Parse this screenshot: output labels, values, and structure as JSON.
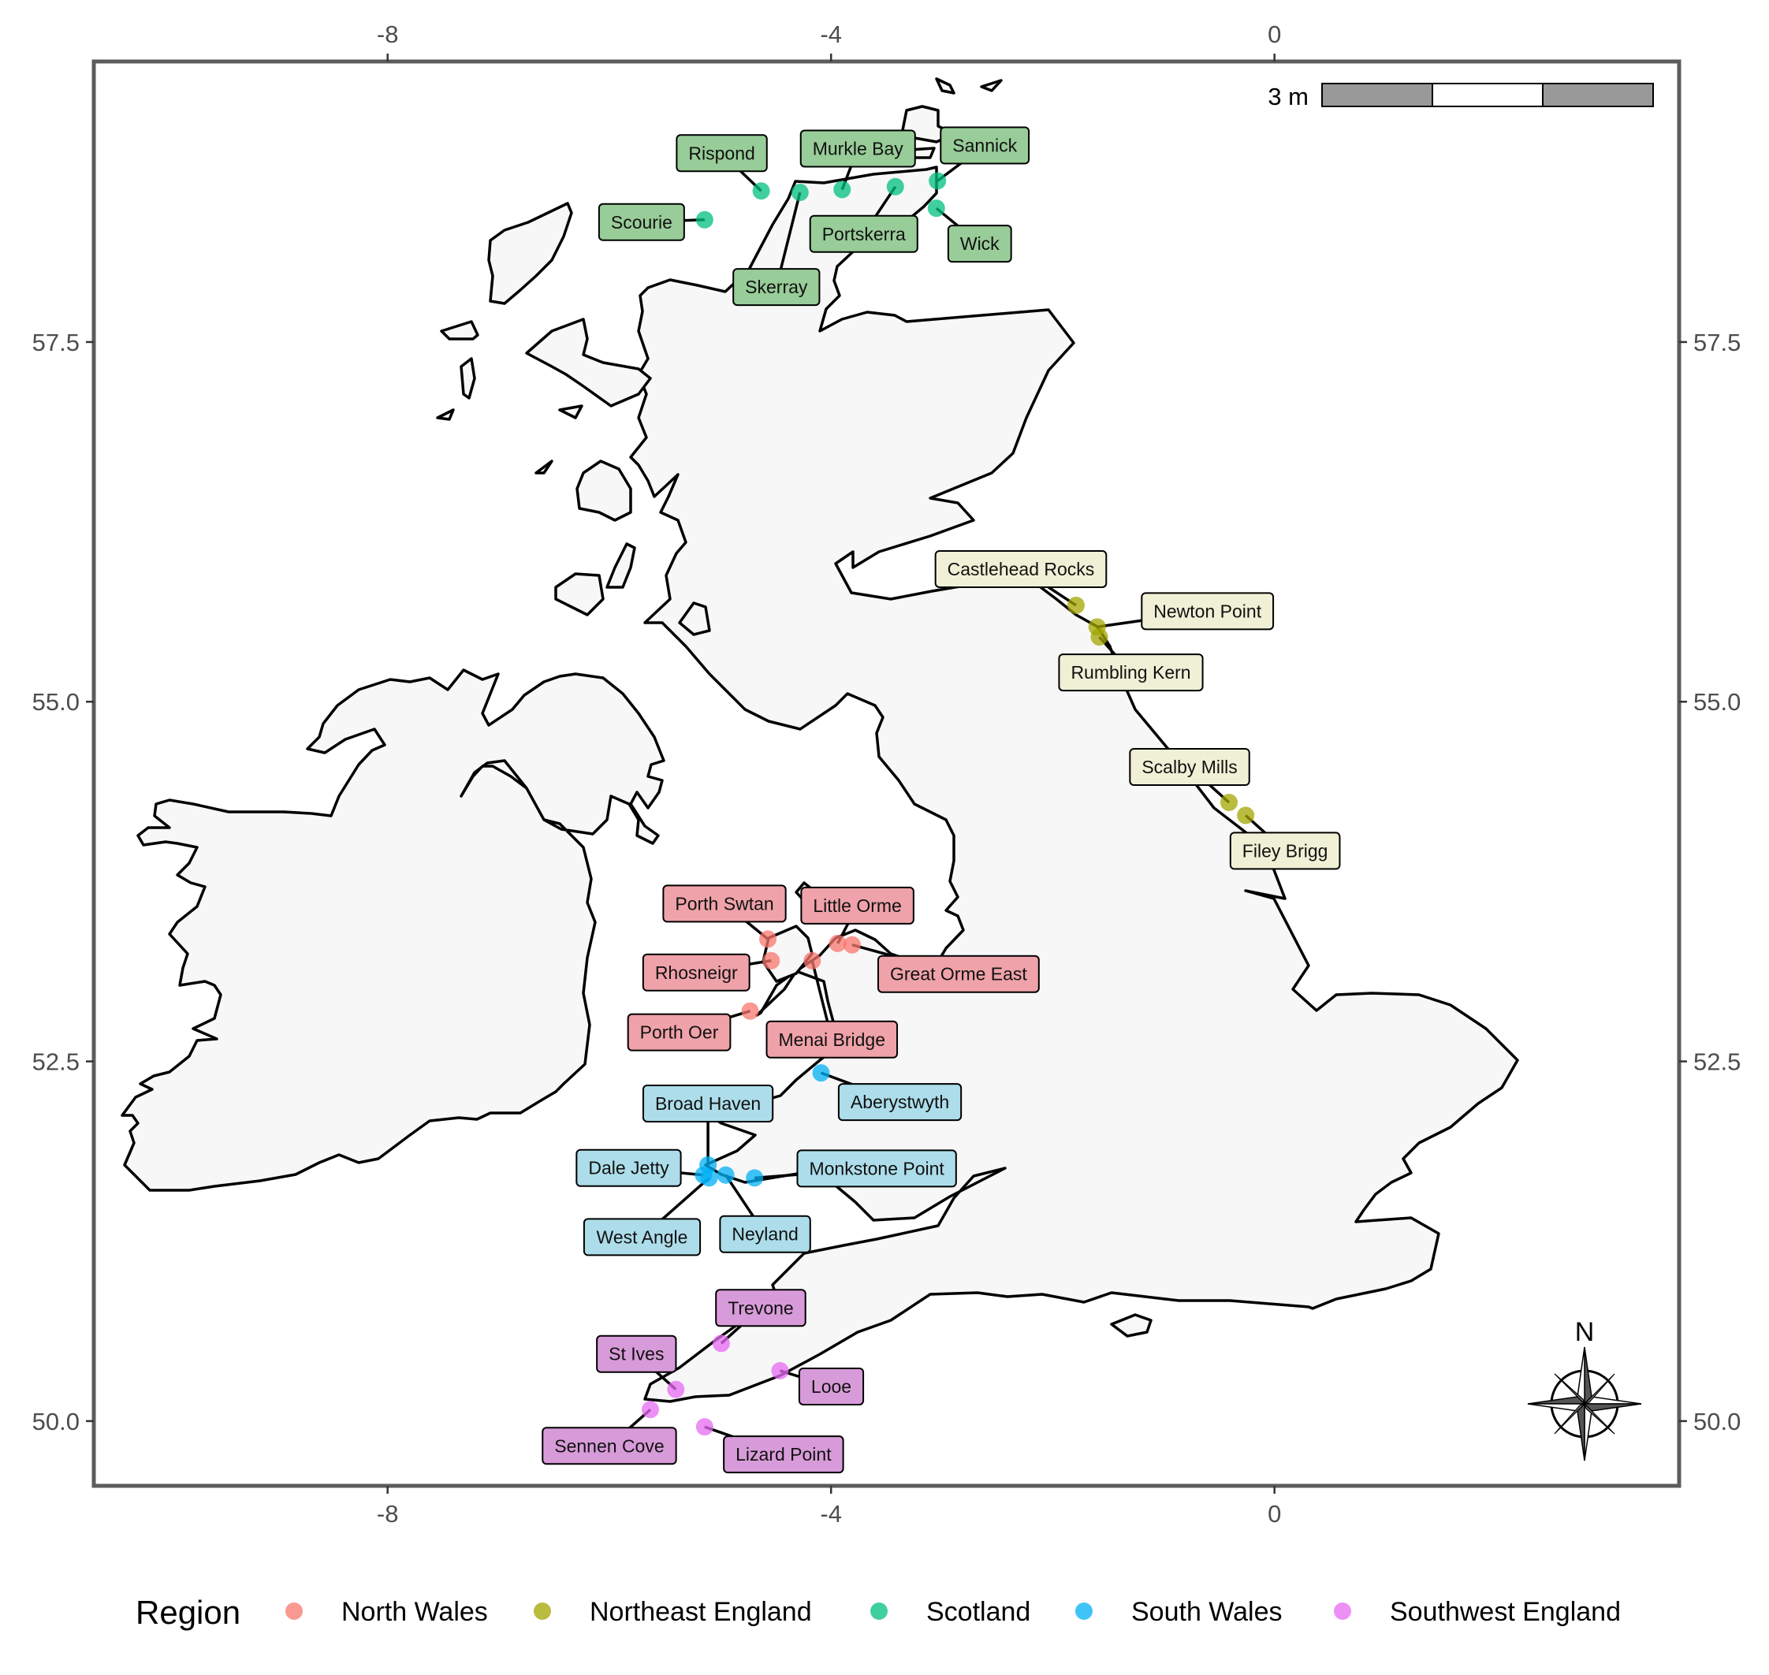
{
  "chart_data": {
    "type": "scatter",
    "x_ticks": [
      "-8",
      "-4",
      "0"
    ],
    "y_ticks": [
      "50.0",
      "52.5",
      "55.0",
      "57.5"
    ],
    "xlim": [
      -10.65,
      3.65
    ],
    "ylim": [
      49.55,
      59.45
    ],
    "legend": {
      "title": "Region",
      "position": "bottom",
      "entries": [
        {
          "name": "North Wales",
          "color": "#F8766D"
        },
        {
          "name": "Northeast England",
          "color": "#A3A500"
        },
        {
          "name": "Scotland",
          "color": "#00BF7D"
        },
        {
          "name": "South Wales",
          "color": "#00B0F6"
        },
        {
          "name": "Southwest England",
          "color": "#E76BF3"
        }
      ]
    },
    "label_fills": {
      "North Wales": "#EFA2A9",
      "Northeast England": "#F0F0D6",
      "Scotland": "#98CC98",
      "South Wales": "#ADDDEA",
      "Southwest England": "#D89BD9"
    },
    "scale_bar": {
      "label": "3 m"
    },
    "north_arrow": {
      "label": "N"
    },
    "sites": [
      {
        "name": "Scourie",
        "region": "Scotland",
        "lon": -5.14,
        "lat": 58.35
      },
      {
        "name": "Rispond",
        "region": "Scotland",
        "lon": -4.63,
        "lat": 58.55
      },
      {
        "name": "Skerray",
        "region": "Scotland",
        "lon": -4.28,
        "lat": 58.54
      },
      {
        "name": "Murkle Bay",
        "region": "Scotland",
        "lon": -3.9,
        "lat": 58.56
      },
      {
        "name": "Portskerra",
        "region": "Scotland",
        "lon": -3.42,
        "lat": 58.58
      },
      {
        "name": "Sannick",
        "region": "Scotland",
        "lon": -3.04,
        "lat": 58.62
      },
      {
        "name": "Wick",
        "region": "Scotland",
        "lon": -3.05,
        "lat": 58.43
      },
      {
        "name": "Castlehead Rocks",
        "region": "Northeast England",
        "lon": -1.79,
        "lat": 55.67
      },
      {
        "name": "Newton Point",
        "region": "Northeast England",
        "lon": -1.6,
        "lat": 55.52
      },
      {
        "name": "Rumbling Kern",
        "region": "Northeast England",
        "lon": -1.58,
        "lat": 55.45
      },
      {
        "name": "Scalby Mills",
        "region": "Northeast England",
        "lon": -0.41,
        "lat": 54.3
      },
      {
        "name": "Filey Brigg",
        "region": "Northeast England",
        "lon": -0.26,
        "lat": 54.21
      },
      {
        "name": "Porth Swtan",
        "region": "North Wales",
        "lon": -4.57,
        "lat": 53.35
      },
      {
        "name": "Rhosneigr",
        "region": "North Wales",
        "lon": -4.54,
        "lat": 53.2
      },
      {
        "name": "Menai Bridge",
        "region": "North Wales",
        "lon": -4.17,
        "lat": 53.2
      },
      {
        "name": "Little Orme",
        "region": "North Wales",
        "lon": -3.94,
        "lat": 53.32
      },
      {
        "name": "Great Orme East",
        "region": "North Wales",
        "lon": -3.81,
        "lat": 53.31
      },
      {
        "name": "Porth Oer",
        "region": "North Wales",
        "lon": -4.73,
        "lat": 52.85
      },
      {
        "name": "Aberystwyth",
        "region": "South Wales",
        "lon": -4.09,
        "lat": 52.42
      },
      {
        "name": "Broad Haven",
        "region": "South Wales",
        "lon": -5.11,
        "lat": 51.78
      },
      {
        "name": "Dale Jetty",
        "region": "South Wales",
        "lon": -5.15,
        "lat": 51.71
      },
      {
        "name": "West Angle",
        "region": "South Wales",
        "lon": -5.1,
        "lat": 51.69
      },
      {
        "name": "Neyland",
        "region": "South Wales",
        "lon": -4.95,
        "lat": 51.71
      },
      {
        "name": "Monkstone Point",
        "region": "South Wales",
        "lon": -4.69,
        "lat": 51.69
      },
      {
        "name": "Trevone",
        "region": "Southwest England",
        "lon": -4.99,
        "lat": 50.54
      },
      {
        "name": "St Ives",
        "region": "Southwest England",
        "lon": -5.4,
        "lat": 50.22
      },
      {
        "name": "Sennen Cove",
        "region": "Southwest England",
        "lon": -5.63,
        "lat": 50.08
      },
      {
        "name": "Lizard Point",
        "region": "Southwest England",
        "lon": -5.14,
        "lat": 49.96
      },
      {
        "name": "Looe",
        "region": "Southwest England",
        "lon": -4.46,
        "lat": 50.35
      }
    ]
  }
}
